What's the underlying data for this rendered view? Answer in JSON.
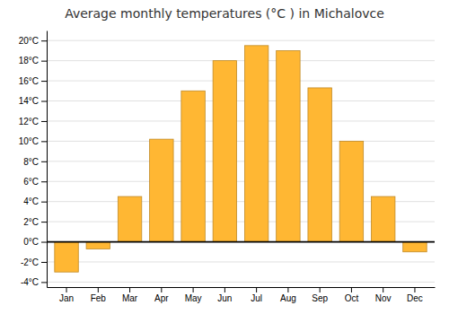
{
  "chart_data": {
    "type": "bar",
    "title": "Average monthly temperatures (°C ) in Michalovce",
    "categories": [
      "Jan",
      "Feb",
      "Mar",
      "Apr",
      "May",
      "Jun",
      "Jul",
      "Aug",
      "Sep",
      "Oct",
      "Nov",
      "Dec"
    ],
    "values": [
      -3.0,
      -0.7,
      4.5,
      10.2,
      15.0,
      18.0,
      19.5,
      19.0,
      15.3,
      10.0,
      4.5,
      -1.0
    ],
    "color": "#FFB733",
    "ylim": [
      -4.5,
      21
    ],
    "yticks": [
      {
        "value": -4,
        "label": "-4°C"
      },
      {
        "value": -2,
        "label": "-2°C"
      },
      {
        "value": 0,
        "label": "0°C"
      },
      {
        "value": 2,
        "label": "2°C"
      },
      {
        "value": 4,
        "label": "4°C"
      },
      {
        "value": 6,
        "label": "6°C"
      },
      {
        "value": 8,
        "label": "8°C"
      },
      {
        "value": 10,
        "label": "10°C"
      },
      {
        "value": 12,
        "label": "12°C"
      },
      {
        "value": 14,
        "label": "14°C"
      },
      {
        "value": 16,
        "label": "16°C"
      },
      {
        "value": 18,
        "label": "18°C"
      },
      {
        "value": 20,
        "label": "20°C"
      }
    ],
    "grid": true
  }
}
